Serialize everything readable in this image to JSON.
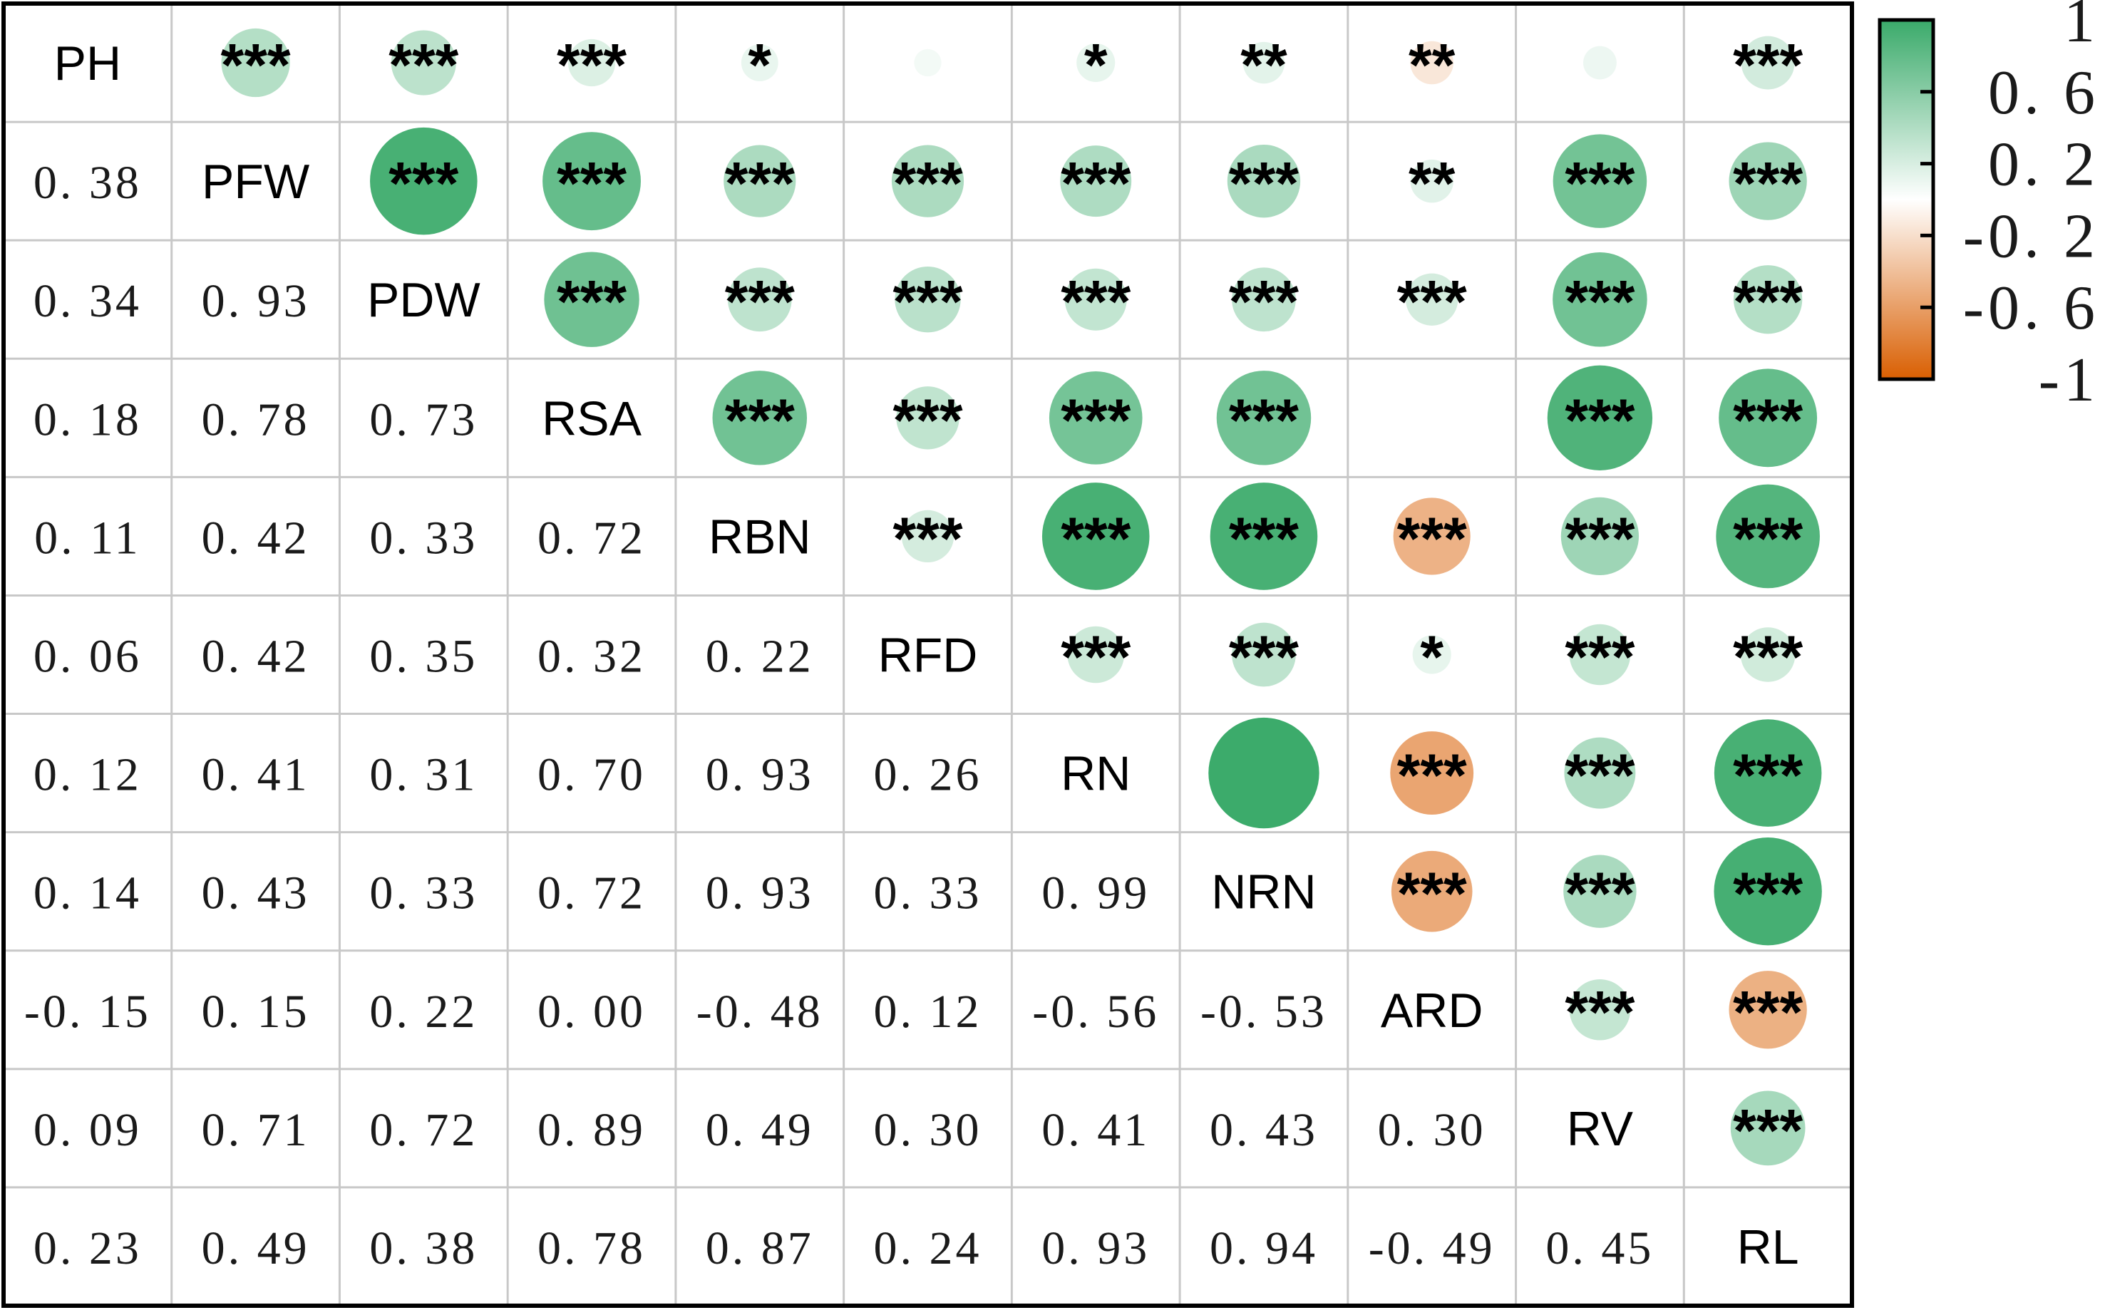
{
  "chart_data": {
    "type": "heatmap",
    "variables": [
      "PH",
      "PFW",
      "PDW",
      "RSA",
      "RBN",
      "RFD",
      "RN",
      "NRN",
      "ARD",
      "RV",
      "RL"
    ],
    "lower_triangle_coefficients": [
      [
        null,
        null,
        null,
        null,
        null,
        null,
        null,
        null,
        null,
        null,
        null
      ],
      [
        "0.38",
        null,
        null,
        null,
        null,
        null,
        null,
        null,
        null,
        null,
        null
      ],
      [
        "0.34",
        "0.93",
        null,
        null,
        null,
        null,
        null,
        null,
        null,
        null,
        null
      ],
      [
        "0.18",
        "0.78",
        "0.73",
        null,
        null,
        null,
        null,
        null,
        null,
        null,
        null
      ],
      [
        "0.11",
        "0.42",
        "0.33",
        "0.72",
        null,
        null,
        null,
        null,
        null,
        null,
        null
      ],
      [
        "0.06",
        "0.42",
        "0.35",
        "0.32",
        "0.22",
        null,
        null,
        null,
        null,
        null,
        null
      ],
      [
        "0.12",
        "0.41",
        "0.31",
        "0.70",
        "0.93",
        "0.26",
        null,
        null,
        null,
        null,
        null
      ],
      [
        "0.14",
        "0.43",
        "0.33",
        "0.72",
        "0.93",
        "0.33",
        "0.99",
        null,
        null,
        null,
        null
      ],
      [
        "-0.15",
        "0.15",
        "0.22",
        "0.00",
        "-0.48",
        "0.12",
        "-0.56",
        "-0.53",
        null,
        null,
        null
      ],
      [
        "0.09",
        "0.71",
        "0.72",
        "0.89",
        "0.49",
        "0.30",
        "0.41",
        "0.43",
        "0.30",
        null,
        null
      ],
      [
        "0.23",
        "0.49",
        "0.38",
        "0.78",
        "0.87",
        "0.24",
        "0.93",
        "0.94",
        "-0.49",
        "0.45",
        null
      ]
    ],
    "upper_triangle_significance": [
      [
        null,
        "***",
        "***",
        "***",
        "*",
        "",
        "*",
        "**",
        "**",
        "",
        "***"
      ],
      [
        null,
        null,
        "***",
        "***",
        "***",
        "***",
        "***",
        "***",
        "**",
        "***",
        "***"
      ],
      [
        null,
        null,
        null,
        "***",
        "***",
        "***",
        "***",
        "***",
        "***",
        "***",
        "***"
      ],
      [
        null,
        null,
        null,
        null,
        "***",
        "***",
        "***",
        "***",
        "",
        "***",
        "***"
      ],
      [
        null,
        null,
        null,
        null,
        null,
        "***",
        "***",
        "***",
        "***",
        "***",
        "***"
      ],
      [
        null,
        null,
        null,
        null,
        null,
        null,
        "***",
        "***",
        "*",
        "***",
        "***"
      ],
      [
        null,
        null,
        null,
        null,
        null,
        null,
        null,
        "",
        "***",
        "***",
        "***"
      ],
      [
        null,
        null,
        null,
        null,
        null,
        null,
        null,
        null,
        "***",
        "***",
        "***"
      ],
      [
        null,
        null,
        null,
        null,
        null,
        null,
        null,
        null,
        null,
        "***",
        "***"
      ],
      [
        null,
        null,
        null,
        null,
        null,
        null,
        null,
        null,
        null,
        null,
        "***"
      ],
      [
        null,
        null,
        null,
        null,
        null,
        null,
        null,
        null,
        null,
        null,
        null
      ]
    ],
    "color_scale": {
      "range": [
        -1,
        1
      ],
      "ticks": [
        {
          "value": 1,
          "label": "1"
        },
        {
          "value": 0.6,
          "label": "0.6"
        },
        {
          "value": 0.2,
          "label": "0.2"
        },
        {
          "value": -0.2,
          "label": "-0.2"
        },
        {
          "value": -0.6,
          "label": "-0.6"
        },
        {
          "value": -1,
          "label": "-1"
        }
      ],
      "colors": {
        "negative": "#d95f02",
        "neutral": "#ffffff",
        "positive": "#3aaa6a"
      }
    },
    "grid": true,
    "legend_position": "right"
  }
}
